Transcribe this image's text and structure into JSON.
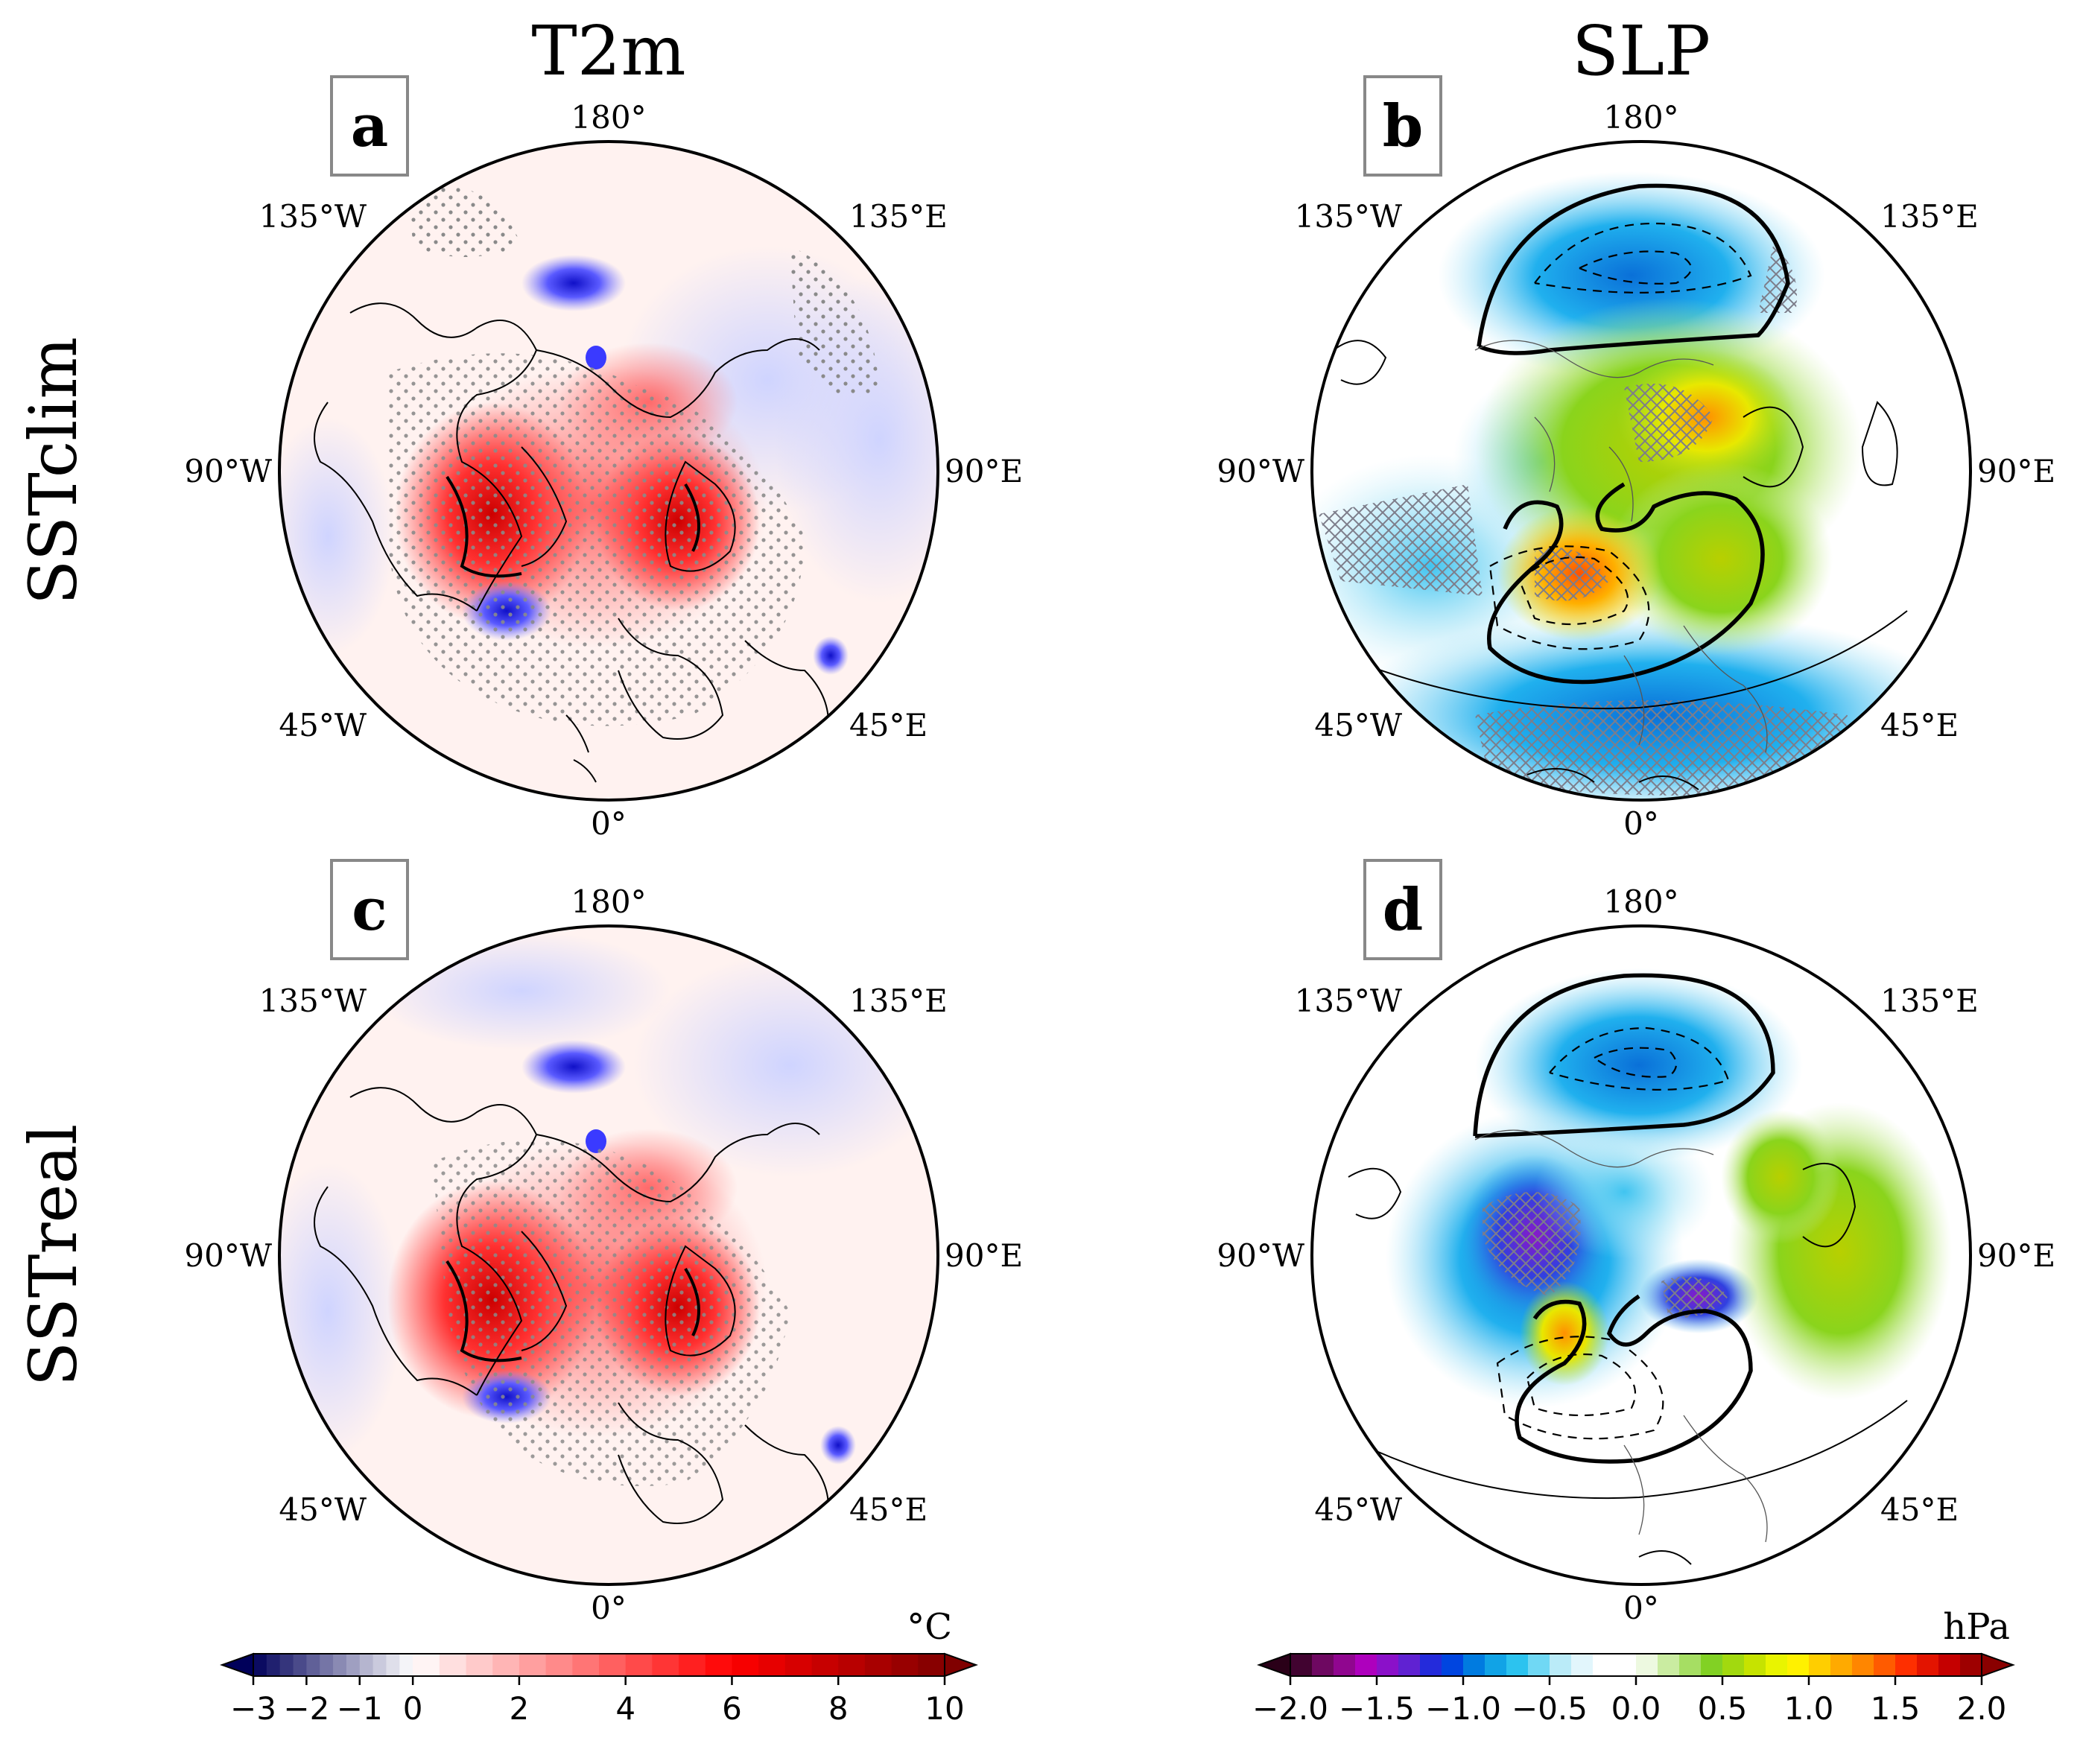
{
  "columns": {
    "left": "T2m",
    "right": "SLP"
  },
  "rows": {
    "top": "SSTclim",
    "bottom": "SSTreal"
  },
  "panels": [
    {
      "letter": "a",
      "variable": "T2m",
      "experiment": "SSTclim"
    },
    {
      "letter": "b",
      "variable": "SLP",
      "experiment": "SSTclim"
    },
    {
      "letter": "c",
      "variable": "T2m",
      "experiment": "SSTreal"
    },
    {
      "letter": "d",
      "variable": "SLP",
      "experiment": "SSTreal"
    }
  ],
  "lon_labels": [
    "180°",
    "135°W",
    "135°E",
    "90°W",
    "90°E",
    "45°W",
    "45°E",
    "0°"
  ],
  "chart_data": [
    {
      "type": "colorbar",
      "variable": "T2m",
      "units": "°C",
      "ticks": [
        "−3",
        "−2",
        "−1",
        "0",
        "2",
        "4",
        "6",
        "8",
        "10"
      ],
      "tick_values": [
        -3,
        -2,
        -1,
        0,
        2,
        4,
        6,
        8,
        10
      ],
      "range": [
        -3,
        10
      ],
      "extend": "both",
      "colors": {
        "neg_lo": "#00005a",
        "neg_hi": "#ffffff",
        "pos_lo": "#ffffff",
        "pos_mid": "#ff0000",
        "pos_hi": "#800000"
      }
    },
    {
      "type": "colorbar",
      "variable": "SLP",
      "units": "hPa",
      "ticks": [
        "−2.0",
        "−1.5",
        "−1.0",
        "−0.5",
        "0.0",
        "0.5",
        "1.0",
        "1.5",
        "2.0"
      ],
      "tick_values": [
        -2.0,
        -1.5,
        -1.0,
        -0.5,
        0.0,
        0.5,
        1.0,
        1.5,
        2.0
      ],
      "range": [
        -2.0,
        2.0
      ],
      "extend": "both",
      "colors": {
        "stops": [
          "#2a0018",
          "#7a0a6e",
          "#b000c0",
          "#6a20d0",
          "#0030e0",
          "#0090e0",
          "#30c8f0",
          "#b8eaf8",
          "#ffffff",
          "#ffffff",
          "#c0e890",
          "#80d020",
          "#c0e000",
          "#ffff00",
          "#ffc000",
          "#ff8000",
          "#ff3000",
          "#d00000",
          "#8a0000"
        ]
      }
    }
  ]
}
